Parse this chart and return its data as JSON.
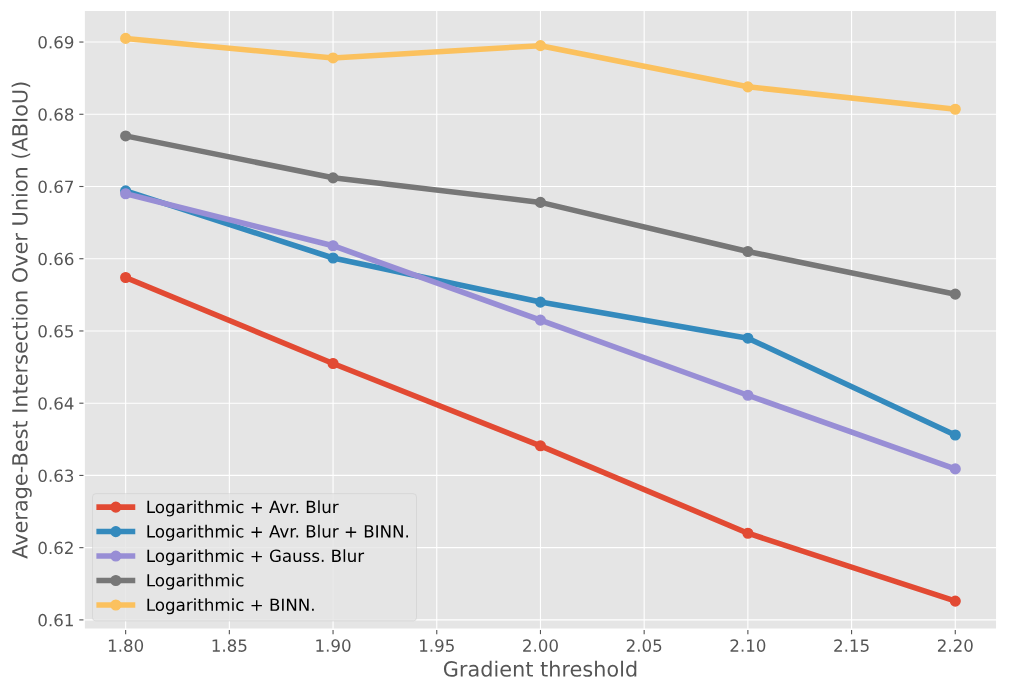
{
  "chart_data": {
    "type": "line",
    "xlabel": "Gradient threshold",
    "ylabel": "Average-Best Intersection Over Union (ABIoU)",
    "x": [
      1.8,
      1.9,
      2.0,
      2.1,
      2.2
    ],
    "xlim": [
      1.78,
      2.22
    ],
    "xticks": [
      {
        "value": 1.8,
        "label": "1.80"
      },
      {
        "value": 1.85,
        "label": "1.85"
      },
      {
        "value": 1.9,
        "label": "1.90"
      },
      {
        "value": 1.95,
        "label": "1.95"
      },
      {
        "value": 2.0,
        "label": "2.00"
      },
      {
        "value": 2.05,
        "label": "2.05"
      },
      {
        "value": 2.1,
        "label": "2.10"
      },
      {
        "value": 2.15,
        "label": "2.15"
      },
      {
        "value": 2.2,
        "label": "2.20"
      }
    ],
    "ylim": [
      0.6087,
      0.6944
    ],
    "yticks": [
      0.61,
      0.62,
      0.63,
      0.64,
      0.65,
      0.66,
      0.67,
      0.68,
      0.69
    ],
    "grid": true,
    "legend": "bottom left",
    "marker": "circle",
    "line_style": "solid",
    "series": [
      {
        "name": "Logarithmic + Avr. Blur",
        "color": "#e24a33",
        "values": [
          0.6574,
          0.6455,
          0.6341,
          0.622,
          0.6126
        ]
      },
      {
        "name": "Logarithmic + Avr. Blur + BINN.",
        "color": "#348abd",
        "values": [
          0.6694,
          0.6601,
          0.654,
          0.649,
          0.6356
        ]
      },
      {
        "name": "Logarithmic + Gauss. Blur",
        "color": "#988ed5",
        "values": [
          0.669,
          0.6618,
          0.6515,
          0.6411,
          0.6309
        ]
      },
      {
        "name": "Logarithmic",
        "color": "#777777",
        "values": [
          0.677,
          0.6712,
          0.6678,
          0.661,
          0.6551
        ]
      },
      {
        "name": "Logarithmic + BINN.",
        "color": "#fbc15e",
        "values": [
          0.6905,
          0.6878,
          0.6895,
          0.6838,
          0.6807
        ]
      }
    ]
  }
}
